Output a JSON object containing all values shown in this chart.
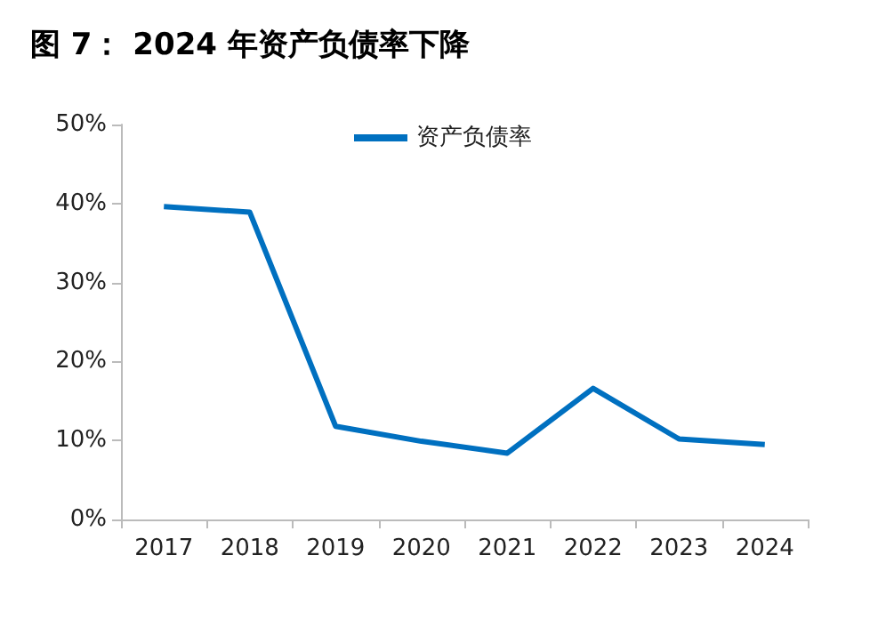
{
  "chart_data": {
    "type": "line",
    "title": "图 7： 2024 年资产负债率下降",
    "categories": [
      "2017",
      "2018",
      "2019",
      "2020",
      "2021",
      "2022",
      "2023",
      "2024"
    ],
    "series": [
      {
        "name": "资产负债率",
        "color": "#0070c0",
        "values": [
          39.6,
          38.9,
          11.8,
          9.9,
          8.4,
          16.6,
          10.2,
          9.5
        ]
      }
    ],
    "ylim": [
      0,
      50
    ],
    "yticks": [
      {
        "value": 0,
        "label": "0%"
      },
      {
        "value": 10,
        "label": "10%"
      },
      {
        "value": 20,
        "label": "20%"
      },
      {
        "value": 30,
        "label": "30%"
      },
      {
        "value": 40,
        "label": "40%"
      },
      {
        "value": 50,
        "label": "50%"
      }
    ],
    "grid": false,
    "legend": "top",
    "marker": "none",
    "line_style": "solid"
  }
}
